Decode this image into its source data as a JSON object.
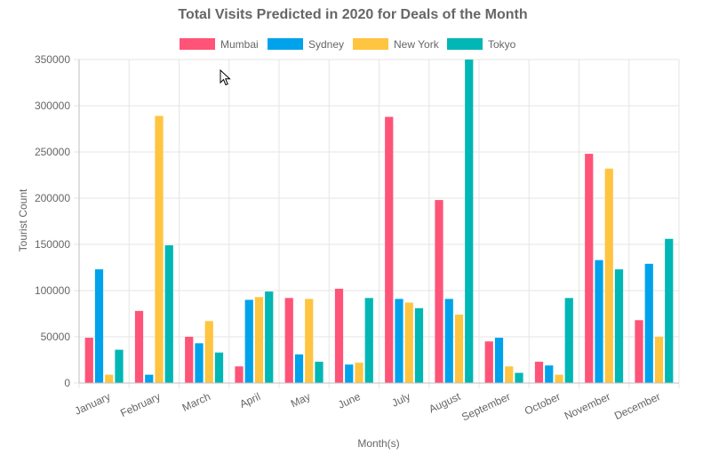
{
  "chart_data": {
    "type": "bar",
    "title": "Total Visits Predicted in 2020 for Deals of the Month",
    "xlabel": "Month(s)",
    "ylabel": "Tourist Count",
    "ylim": [
      0,
      350000
    ],
    "yticks": [
      0,
      50000,
      100000,
      150000,
      200000,
      250000,
      300000,
      350000
    ],
    "grid": true,
    "legend_position": "top",
    "categories": [
      "January",
      "February",
      "March",
      "April",
      "May",
      "June",
      "July",
      "August",
      "September",
      "October",
      "November",
      "December"
    ],
    "series": [
      {
        "name": "Mumbai",
        "color": "#ff5378",
        "values": [
          49000,
          78000,
          50000,
          18000,
          92000,
          102000,
          288000,
          198000,
          45000,
          23000,
          248000,
          68000
        ]
      },
      {
        "name": "Sydney",
        "color": "#00a3eb",
        "values": [
          123000,
          9000,
          43000,
          90000,
          31000,
          20000,
          91000,
          91000,
          49000,
          19000,
          133000,
          129000
        ]
      },
      {
        "name": "New York",
        "color": "#ffc440",
        "values": [
          9000,
          289000,
          67000,
          93000,
          91000,
          22000,
          87000,
          74000,
          18000,
          9000,
          232000,
          50000
        ]
      },
      {
        "name": "Tokyo",
        "color": "#00b7b6",
        "values": [
          36000,
          149000,
          33000,
          99000,
          23000,
          92000,
          81000,
          350000,
          11000,
          92000,
          123000,
          156000
        ]
      }
    ]
  },
  "cursor_icon": "arrow-cursor-icon"
}
